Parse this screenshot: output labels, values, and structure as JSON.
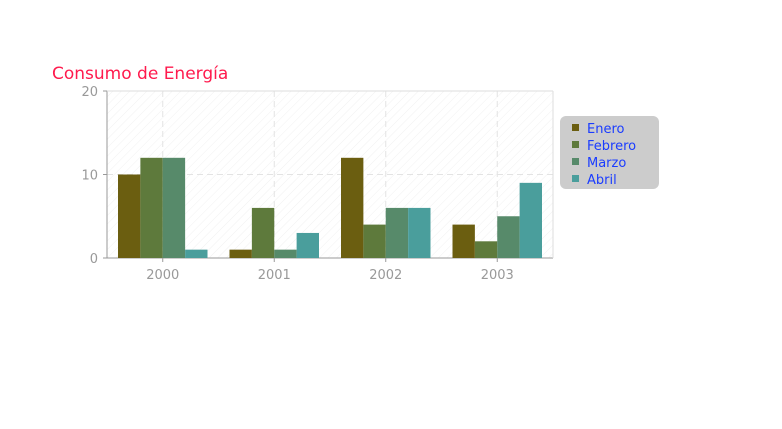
{
  "chart_data": {
    "type": "bar",
    "title": "Consumo de Energía",
    "xlabel": "",
    "ylabel": "",
    "categories": [
      "2000",
      "2001",
      "2002",
      "2003"
    ],
    "series": [
      {
        "name": "Enero",
        "values": [
          10,
          1,
          12,
          4
        ],
        "color": "#6b5e10"
      },
      {
        "name": "Febrero",
        "values": [
          12,
          6,
          4,
          2
        ],
        "color": "#5e7a3c"
      },
      {
        "name": "Marzo",
        "values": [
          12,
          1,
          6,
          5
        ],
        "color": "#578a6a"
      },
      {
        "name": "Abril",
        "values": [
          1,
          3,
          6,
          9
        ],
        "color": "#4a9e9c"
      }
    ],
    "ylim": [
      0,
      20
    ],
    "yticks": [
      "0",
      "10",
      "20"
    ],
    "grid": true,
    "legend_position": "right",
    "colors": {
      "title": "#ff1a4d",
      "legend_text": "#1a3cff",
      "legend_background": "#cccccc",
      "axis": "#999999",
      "grid": "#e3e3e3"
    }
  }
}
